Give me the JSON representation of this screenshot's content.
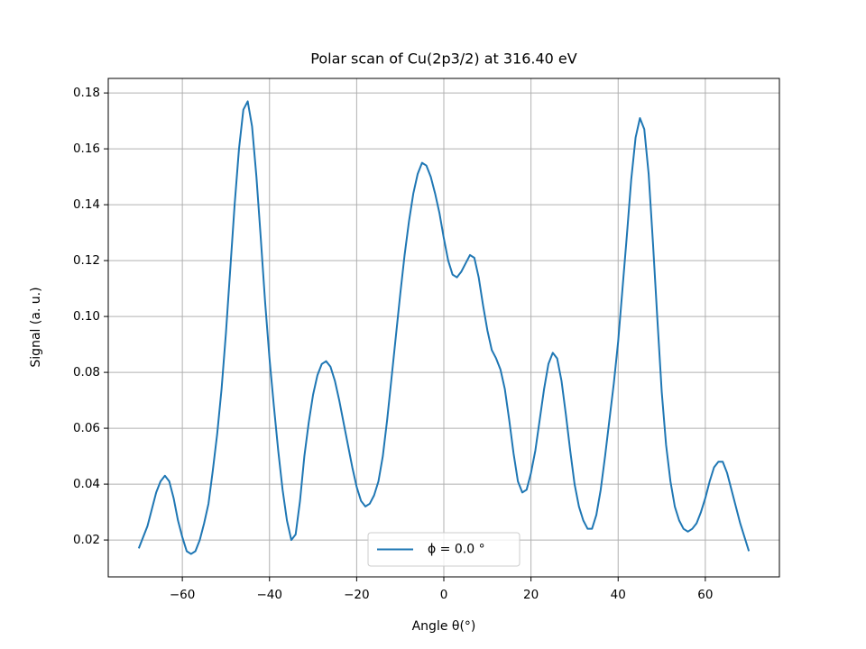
{
  "chart_data": {
    "type": "line",
    "title": "Polar scan of Cu(2p3/2) at 316.40 eV",
    "xlabel": "Angle θ(°)",
    "ylabel": "Signal (a. u.)",
    "x": [
      -70,
      -69,
      -68,
      -67,
      -66,
      -65,
      -64,
      -63,
      -62,
      -61,
      -60,
      -59,
      -58,
      -57,
      -56,
      -55,
      -54,
      -53,
      -52,
      -51,
      -50,
      -49,
      -48,
      -47,
      -46,
      -45,
      -44,
      -43,
      -42,
      -41,
      -40,
      -39,
      -38,
      -37,
      -36,
      -35,
      -34,
      -33,
      -32,
      -31,
      -30,
      -29,
      -28,
      -27,
      -26,
      -25,
      -24,
      -23,
      -22,
      -21,
      -20,
      -19,
      -18,
      -17,
      -16,
      -15,
      -14,
      -13,
      -12,
      -11,
      -10,
      -9,
      -8,
      -7,
      -6,
      -5,
      -4,
      -3,
      -2,
      -1,
      0,
      1,
      2,
      3,
      4,
      5,
      6,
      7,
      8,
      9,
      10,
      11,
      12,
      13,
      14,
      15,
      16,
      17,
      18,
      19,
      20,
      21,
      22,
      23,
      24,
      25,
      26,
      27,
      28,
      29,
      30,
      31,
      32,
      33,
      34,
      35,
      36,
      37,
      38,
      39,
      40,
      41,
      42,
      43,
      44,
      45,
      46,
      47,
      48,
      49,
      50,
      51,
      52,
      53,
      54,
      55,
      56,
      57,
      58,
      59,
      60,
      61,
      62,
      63,
      64,
      65,
      66,
      67,
      68,
      69,
      70
    ],
    "series": [
      {
        "name": "ϕ = 0.0 °",
        "color": "#1f77b4",
        "values": [
          0.017,
          0.021,
          0.025,
          0.031,
          0.037,
          0.041,
          0.043,
          0.041,
          0.035,
          0.027,
          0.021,
          0.016,
          0.015,
          0.016,
          0.02,
          0.026,
          0.033,
          0.045,
          0.058,
          0.074,
          0.094,
          0.117,
          0.14,
          0.16,
          0.174,
          0.177,
          0.168,
          0.15,
          0.128,
          0.105,
          0.085,
          0.068,
          0.052,
          0.038,
          0.027,
          0.02,
          0.022,
          0.034,
          0.05,
          0.062,
          0.072,
          0.079,
          0.083,
          0.084,
          0.082,
          0.077,
          0.07,
          0.062,
          0.054,
          0.046,
          0.039,
          0.034,
          0.032,
          0.033,
          0.036,
          0.041,
          0.05,
          0.063,
          0.078,
          0.093,
          0.108,
          0.122,
          0.134,
          0.144,
          0.151,
          0.155,
          0.154,
          0.15,
          0.144,
          0.137,
          0.128,
          0.12,
          0.115,
          0.114,
          0.116,
          0.119,
          0.122,
          0.121,
          0.114,
          0.104,
          0.095,
          0.088,
          0.085,
          0.081,
          0.074,
          0.063,
          0.051,
          0.041,
          0.037,
          0.038,
          0.044,
          0.052,
          0.063,
          0.074,
          0.083,
          0.087,
          0.085,
          0.077,
          0.065,
          0.052,
          0.04,
          0.032,
          0.027,
          0.024,
          0.024,
          0.029,
          0.038,
          0.05,
          0.063,
          0.076,
          0.091,
          0.11,
          0.129,
          0.149,
          0.164,
          0.171,
          0.167,
          0.151,
          0.126,
          0.099,
          0.073,
          0.054,
          0.041,
          0.032,
          0.027,
          0.024,
          0.023,
          0.024,
          0.026,
          0.03,
          0.035,
          0.041,
          0.046,
          0.048,
          0.048,
          0.044,
          0.038,
          0.032,
          0.026,
          0.021,
          0.016
        ]
      }
    ],
    "xlim": [
      -77,
      77
    ],
    "ylim": [
      0.0068,
      0.1852
    ],
    "xticks": [
      {
        "value": -60,
        "label": "−60"
      },
      {
        "value": -40,
        "label": "−40"
      },
      {
        "value": -20,
        "label": "−20"
      },
      0,
      20,
      40,
      60
    ],
    "yticks": [
      {
        "value": 0.02,
        "label": "0.02"
      },
      {
        "value": 0.04,
        "label": "0.04"
      },
      {
        "value": 0.06,
        "label": "0.06"
      },
      {
        "value": 0.08,
        "label": "0.08"
      },
      {
        "value": 0.1,
        "label": "0.10"
      },
      {
        "value": 0.12,
        "label": "0.12"
      },
      {
        "value": 0.14,
        "label": "0.14"
      },
      {
        "value": 0.16,
        "label": "0.16"
      },
      {
        "value": 0.18,
        "label": "0.18"
      }
    ],
    "grid": true,
    "legend": "lower center"
  }
}
